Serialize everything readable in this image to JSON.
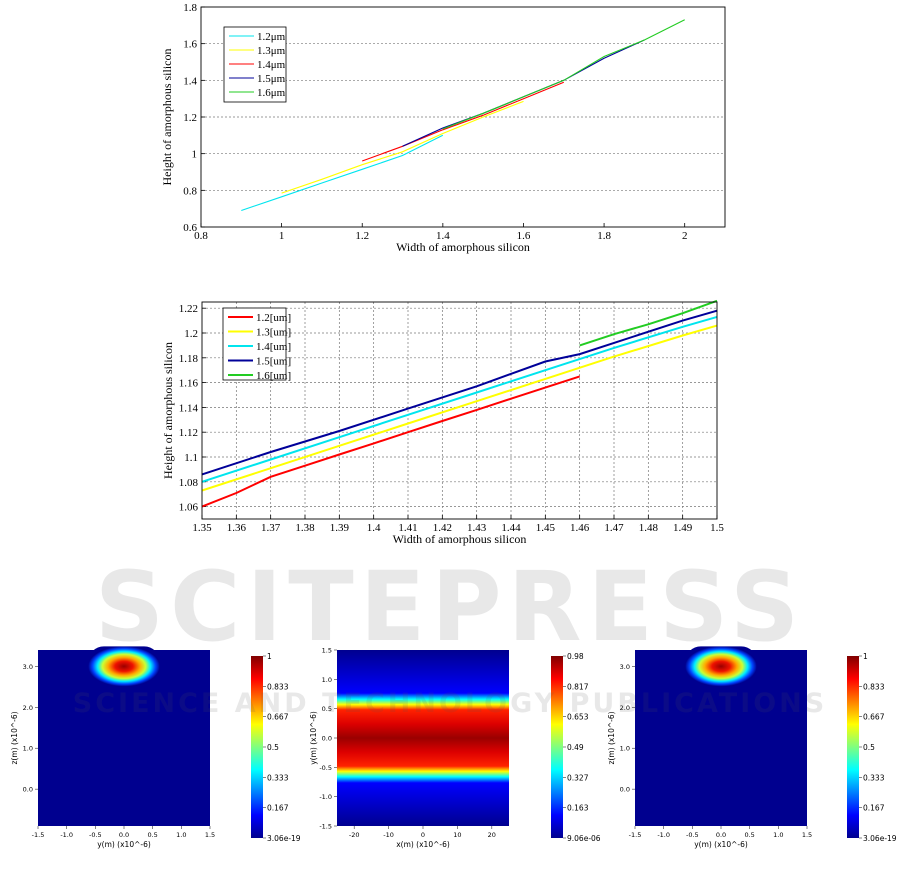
{
  "watermark": {
    "title": "SCITEPRESS",
    "subtitle": "SCIENCE AND TECHNOLOGY PUBLICATIONS"
  },
  "chart_data": [
    {
      "type": "line",
      "xlabel": "Width of amorphous silicon",
      "ylabel": "Height of amorphous silicon",
      "xlim": [
        0.8,
        2.1
      ],
      "ylim": [
        0.6,
        1.8
      ],
      "xticks": [
        "0.8",
        "1",
        "1.2",
        "1.4",
        "1.6",
        "1.8",
        "2"
      ],
      "xtick_values": [
        0.8,
        1.0,
        1.2,
        1.4,
        1.6,
        1.8,
        2.0
      ],
      "yticks": [
        "0.6",
        "0.8",
        "1",
        "1.2",
        "1.4",
        "1.6",
        "1.8"
      ],
      "ytick_values": [
        0.6,
        0.8,
        1.0,
        1.2,
        1.4,
        1.6,
        1.8
      ],
      "grid": "horizontal dotted",
      "legend_position": "top-left",
      "series": [
        {
          "name": "1.2μm",
          "color": "#00e5ee",
          "x": [
            0.9,
            1.0,
            1.1,
            1.2,
            1.3,
            1.4
          ],
          "y": [
            0.69,
            0.765,
            0.84,
            0.915,
            0.99,
            1.1
          ]
        },
        {
          "name": "1.3μm",
          "color": "#ffff00",
          "x": [
            1.0,
            1.1,
            1.2,
            1.3,
            1.4,
            1.5,
            1.6
          ],
          "y": [
            0.785,
            0.86,
            0.94,
            1.01,
            1.11,
            1.2,
            1.285
          ]
        },
        {
          "name": "1.4μm",
          "color": "#ff0000",
          "x": [
            1.2,
            1.3,
            1.4,
            1.5,
            1.6,
            1.7
          ],
          "y": [
            0.96,
            1.04,
            1.13,
            1.21,
            1.3,
            1.39
          ]
        },
        {
          "name": "1.5μm",
          "color": "#000099",
          "x": [
            1.3,
            1.4,
            1.5,
            1.6,
            1.7,
            1.8,
            1.9
          ],
          "y": [
            1.04,
            1.14,
            1.22,
            1.31,
            1.4,
            1.52,
            1.62
          ]
        },
        {
          "name": "1.6μm",
          "color": "#22cc22",
          "x": [
            1.4,
            1.5,
            1.6,
            1.7,
            1.8,
            1.9,
            2.0
          ],
          "y": [
            1.135,
            1.22,
            1.31,
            1.4,
            1.53,
            1.62,
            1.73
          ]
        }
      ]
    },
    {
      "type": "line",
      "xlabel": "Width of amorphous silicon",
      "ylabel": "Height of amorphous silicon",
      "xlim": [
        1.35,
        1.5
      ],
      "ylim": [
        1.05,
        1.225
      ],
      "xticks": [
        "1.35",
        "1.36",
        "1.37",
        "1.38",
        "1.39",
        "1.4",
        "1.41",
        "1.42",
        "1.43",
        "1.44",
        "1.45",
        "1.46",
        "1.47",
        "1.48",
        "1.49",
        "1.5"
      ],
      "xtick_values": [
        1.35,
        1.36,
        1.37,
        1.38,
        1.39,
        1.4,
        1.41,
        1.42,
        1.43,
        1.44,
        1.45,
        1.46,
        1.47,
        1.48,
        1.49,
        1.5
      ],
      "yticks": [
        "1.06",
        "1.08",
        "1.1",
        "1.12",
        "1.14",
        "1.16",
        "1.18",
        "1.2",
        "1.22"
      ],
      "ytick_values": [
        1.06,
        1.08,
        1.1,
        1.12,
        1.14,
        1.16,
        1.18,
        1.2,
        1.22
      ],
      "grid": "both dotted",
      "legend_position": "top-left",
      "series": [
        {
          "name": "1.2[um]",
          "color": "#ff0000",
          "x": [
            1.35,
            1.36,
            1.37,
            1.38,
            1.39,
            1.4,
            1.41,
            1.42,
            1.43,
            1.44,
            1.45,
            1.46
          ],
          "y": [
            1.06,
            1.071,
            1.084,
            1.093,
            1.102,
            1.111,
            1.12,
            1.129,
            1.138,
            1.147,
            1.156,
            1.165
          ]
        },
        {
          "name": "1.3[um]",
          "color": "#ffff00",
          "x": [
            1.35,
            1.37,
            1.39,
            1.41,
            1.43,
            1.45,
            1.47,
            1.49,
            1.5
          ],
          "y": [
            1.073,
            1.091,
            1.109,
            1.127,
            1.145,
            1.163,
            1.181,
            1.198,
            1.206
          ]
        },
        {
          "name": "1.4[um]",
          "color": "#00e5ee",
          "x": [
            1.35,
            1.37,
            1.39,
            1.41,
            1.43,
            1.45,
            1.47,
            1.49,
            1.5
          ],
          "y": [
            1.08,
            1.098,
            1.116,
            1.134,
            1.152,
            1.17,
            1.188,
            1.205,
            1.213
          ]
        },
        {
          "name": "1.5[um]",
          "color": "#000099",
          "x": [
            1.35,
            1.37,
            1.39,
            1.41,
            1.43,
            1.45,
            1.46,
            1.47,
            1.49,
            1.5
          ],
          "y": [
            1.086,
            1.104,
            1.121,
            1.139,
            1.157,
            1.177,
            1.183,
            1.192,
            1.21,
            1.218
          ]
        },
        {
          "name": "1.6[um]",
          "color": "#22cc22",
          "x": [
            1.46,
            1.47,
            1.48,
            1.49,
            1.5
          ],
          "y": [
            1.19,
            1.199,
            1.207,
            1.216,
            1.226
          ]
        }
      ]
    },
    {
      "type": "heatmap",
      "xlabel": "y(m) (x10^-6)",
      "ylabel": "z(m) (x10^-6)",
      "xticks": [
        "-1.5",
        "-1.0",
        "-0.5",
        "0.0",
        "0.5",
        "1.0",
        "1.5"
      ],
      "xtick_values": [
        -1.5,
        -1.0,
        -0.5,
        0.0,
        0.5,
        1.0,
        1.5
      ],
      "yticks": [
        "0.0",
        "1.0",
        "2.0",
        "3.0"
      ],
      "ytick_values": [
        0.0,
        1.0,
        2.0,
        3.0
      ],
      "xlim": [
        -1.5,
        1.5
      ],
      "ylim": [
        -0.9,
        3.4
      ],
      "field": {
        "shape": "spot",
        "center": [
          0.0,
          3.0
        ],
        "half_width": [
          0.5,
          0.35
        ]
      },
      "colorbar_ticks": [
        "1",
        "0.833",
        "0.667",
        "0.5",
        "0.333",
        "0.167",
        "3.06e-19"
      ]
    },
    {
      "type": "heatmap",
      "xlabel": "x(m) (x10^-6)",
      "ylabel": "y(m) (x10^-6)",
      "xticks": [
        "-20",
        "-10",
        "0",
        "10",
        "20"
      ],
      "xtick_values": [
        -20,
        -10,
        0,
        10,
        20
      ],
      "yticks": [
        "-1.5",
        "-1.0",
        "-0.5",
        "0.0",
        "0.5",
        "1.0",
        "1.5"
      ],
      "ytick_values": [
        -1.5,
        -1.0,
        -0.5,
        0.0,
        0.5,
        1.0,
        1.5
      ],
      "xlim": [
        -25,
        25
      ],
      "ylim": [
        -1.5,
        1.5
      ],
      "field": {
        "shape": "band",
        "center_y": 0.0,
        "half_width": 0.55
      },
      "colorbar_ticks": [
        "0.98",
        "0.817",
        "0.653",
        "0.49",
        "0.327",
        "0.163",
        "9.06e-06"
      ]
    },
    {
      "type": "heatmap",
      "xlabel": "y(m) (x10^-6)",
      "ylabel": "z(m) (x10^-6)",
      "xticks": [
        "-1.5",
        "-1.0",
        "-0.5",
        "0.0",
        "0.5",
        "1.0",
        "1.5"
      ],
      "xtick_values": [
        -1.5,
        -1.0,
        -0.5,
        0.0,
        0.5,
        1.0,
        1.5
      ],
      "yticks": [
        "0.0",
        "1.0",
        "2.0",
        "3.0"
      ],
      "ytick_values": [
        0.0,
        1.0,
        2.0,
        3.0
      ],
      "xlim": [
        -1.5,
        1.5
      ],
      "ylim": [
        -0.9,
        3.4
      ],
      "field": {
        "shape": "spot",
        "center": [
          0.0,
          3.0
        ],
        "half_width": [
          0.5,
          0.35
        ]
      },
      "colorbar_ticks": [
        "1",
        "0.833",
        "0.667",
        "0.5",
        "0.333",
        "0.167",
        "3.06e-19"
      ]
    }
  ]
}
